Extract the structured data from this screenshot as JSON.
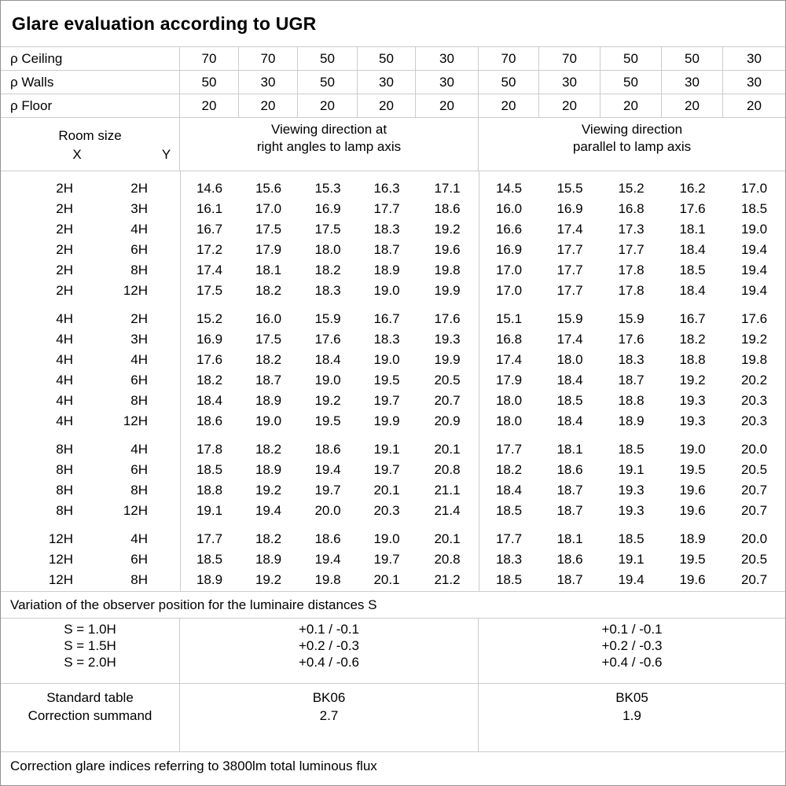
{
  "title": "Glare evaluation according to UGR",
  "colors": {
    "grid_line": "#cccccc",
    "outer_border": "#919191",
    "text": "#000000"
  },
  "reflectance_rows": [
    {
      "label": "ρ Ceiling",
      "values": [
        "70",
        "70",
        "50",
        "50",
        "30",
        "70",
        "70",
        "50",
        "50",
        "30"
      ]
    },
    {
      "label": "ρ Walls",
      "values": [
        "50",
        "30",
        "50",
        "30",
        "30",
        "50",
        "30",
        "50",
        "30",
        "30"
      ]
    },
    {
      "label": "ρ Floor",
      "values": [
        "20",
        "20",
        "20",
        "20",
        "20",
        "20",
        "20",
        "20",
        "20",
        "20"
      ]
    }
  ],
  "room_size": {
    "label": "Room size",
    "x": "X",
    "y": "Y"
  },
  "viewing_headers": {
    "perpendicular": {
      "lines": [
        "Viewing direction at",
        "right angles to lamp axis"
      ]
    },
    "parallel": {
      "lines": [
        "Viewing direction",
        "parallel to lamp axis"
      ]
    }
  },
  "ugr_table": {
    "columns": [
      "X",
      "Y",
      "perpendicular 70/50/20",
      "perpendicular 70/30/20",
      "perpendicular 50/50/20",
      "perpendicular 50/30/20",
      "perpendicular 30/30/20",
      "parallel 70/50/20",
      "parallel 70/30/20",
      "parallel 50/50/20",
      "parallel 50/30/20",
      "parallel 30/30/20"
    ],
    "groups": [
      {
        "rows": [
          [
            "2H",
            "2H",
            "14.6",
            "15.6",
            "15.3",
            "16.3",
            "17.1",
            "14.5",
            "15.5",
            "15.2",
            "16.2",
            "17.0"
          ],
          [
            "2H",
            "3H",
            "16.1",
            "17.0",
            "16.9",
            "17.7",
            "18.6",
            "16.0",
            "16.9",
            "16.8",
            "17.6",
            "18.5"
          ],
          [
            "2H",
            "4H",
            "16.7",
            "17.5",
            "17.5",
            "18.3",
            "19.2",
            "16.6",
            "17.4",
            "17.3",
            "18.1",
            "19.0"
          ],
          [
            "2H",
            "6H",
            "17.2",
            "17.9",
            "18.0",
            "18.7",
            "19.6",
            "16.9",
            "17.7",
            "17.7",
            "18.4",
            "19.4"
          ],
          [
            "2H",
            "8H",
            "17.4",
            "18.1",
            "18.2",
            "18.9",
            "19.8",
            "17.0",
            "17.7",
            "17.8",
            "18.5",
            "19.4"
          ],
          [
            "2H",
            "12H",
            "17.5",
            "18.2",
            "18.3",
            "19.0",
            "19.9",
            "17.0",
            "17.7",
            "17.8",
            "18.4",
            "19.4"
          ]
        ]
      },
      {
        "rows": [
          [
            "4H",
            "2H",
            "15.2",
            "16.0",
            "15.9",
            "16.7",
            "17.6",
            "15.1",
            "15.9",
            "15.9",
            "16.7",
            "17.6"
          ],
          [
            "4H",
            "3H",
            "16.9",
            "17.5",
            "17.6",
            "18.3",
            "19.3",
            "16.8",
            "17.4",
            "17.6",
            "18.2",
            "19.2"
          ],
          [
            "4H",
            "4H",
            "17.6",
            "18.2",
            "18.4",
            "19.0",
            "19.9",
            "17.4",
            "18.0",
            "18.3",
            "18.8",
            "19.8"
          ],
          [
            "4H",
            "6H",
            "18.2",
            "18.7",
            "19.0",
            "19.5",
            "20.5",
            "17.9",
            "18.4",
            "18.7",
            "19.2",
            "20.2"
          ],
          [
            "4H",
            "8H",
            "18.4",
            "18.9",
            "19.2",
            "19.7",
            "20.7",
            "18.0",
            "18.5",
            "18.8",
            "19.3",
            "20.3"
          ],
          [
            "4H",
            "12H",
            "18.6",
            "19.0",
            "19.5",
            "19.9",
            "20.9",
            "18.0",
            "18.4",
            "18.9",
            "19.3",
            "20.3"
          ]
        ]
      },
      {
        "rows": [
          [
            "8H",
            "4H",
            "17.8",
            "18.2",
            "18.6",
            "19.1",
            "20.1",
            "17.7",
            "18.1",
            "18.5",
            "19.0",
            "20.0"
          ],
          [
            "8H",
            "6H",
            "18.5",
            "18.9",
            "19.4",
            "19.7",
            "20.8",
            "18.2",
            "18.6",
            "19.1",
            "19.5",
            "20.5"
          ],
          [
            "8H",
            "8H",
            "18.8",
            "19.2",
            "19.7",
            "20.1",
            "21.1",
            "18.4",
            "18.7",
            "19.3",
            "19.6",
            "20.7"
          ],
          [
            "8H",
            "12H",
            "19.1",
            "19.4",
            "20.0",
            "20.3",
            "21.4",
            "18.5",
            "18.7",
            "19.3",
            "19.6",
            "20.7"
          ]
        ]
      },
      {
        "rows": [
          [
            "12H",
            "4H",
            "17.7",
            "18.2",
            "18.6",
            "19.0",
            "20.1",
            "17.7",
            "18.1",
            "18.5",
            "18.9",
            "20.0"
          ],
          [
            "12H",
            "6H",
            "18.5",
            "18.9",
            "19.4",
            "19.7",
            "20.8",
            "18.3",
            "18.6",
            "19.1",
            "19.5",
            "20.5"
          ],
          [
            "12H",
            "8H",
            "18.9",
            "19.2",
            "19.8",
            "20.1",
            "21.2",
            "18.5",
            "18.7",
            "19.4",
            "19.6",
            "20.7"
          ]
        ]
      }
    ]
  },
  "variation_note": "Variation of the observer position for the luminaire distances S",
  "s_rows": [
    {
      "label": "S = 1.0H",
      "perpendicular": "+0.1 / -0.1",
      "parallel": "+0.1 / -0.1"
    },
    {
      "label": "S = 1.5H",
      "perpendicular": "+0.2 / -0.3",
      "parallel": "+0.2 / -0.3"
    },
    {
      "label": "S = 2.0H",
      "perpendicular": "+0.4 / -0.6",
      "parallel": "+0.4 / -0.6"
    }
  ],
  "standard_rows": [
    {
      "label": "Standard table",
      "perpendicular": "BK06",
      "parallel": "BK05"
    },
    {
      "label": "Correction summand",
      "perpendicular": "2.7",
      "parallel": "1.9"
    }
  ],
  "footer_note": "Correction glare indices referring to 3800lm total luminous flux"
}
